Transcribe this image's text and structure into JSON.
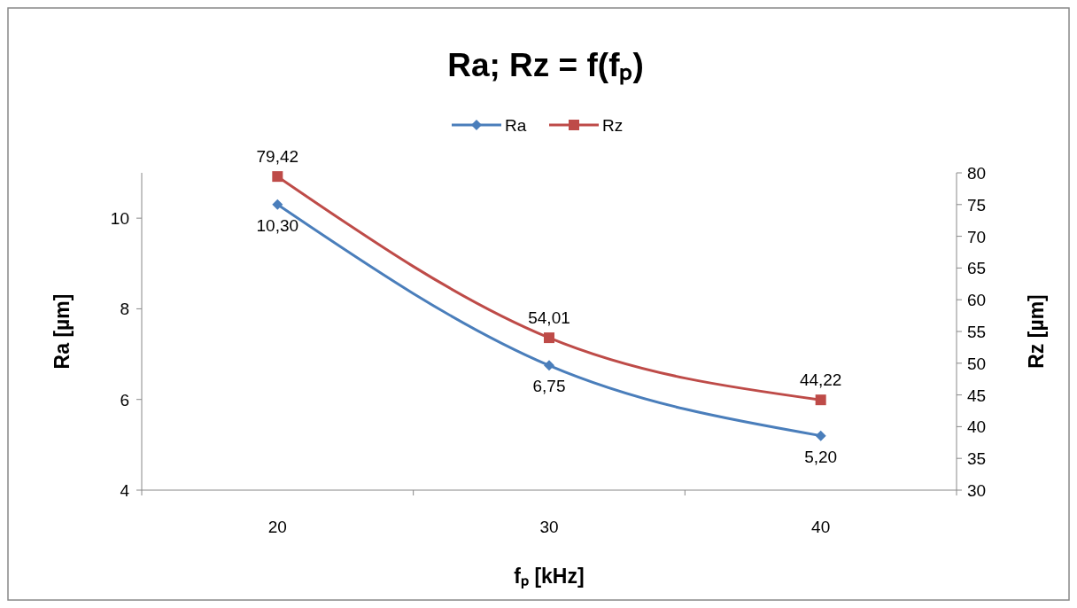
{
  "chart_data": {
    "type": "line",
    "title": "Ra; Rz = f(fₚ)",
    "xlabel": "fₚ [kHz]",
    "ylabel": "Ra [µm]",
    "y2label": "Rz [µm]",
    "categories": [
      "20",
      "30",
      "40"
    ],
    "series": [
      {
        "name": "Ra",
        "color": "#4a7ebb",
        "marker": "diamond",
        "values": [
          10.3,
          6.75,
          5.2
        ],
        "value_labels": [
          "10,30",
          "6,75",
          "5,20"
        ]
      },
      {
        "name": "Rz",
        "color": "#be4b48",
        "marker": "square",
        "axis": "y2",
        "values": [
          79.42,
          54.01,
          44.22
        ],
        "value_labels": [
          "79,42",
          "54,01",
          "44,22"
        ]
      }
    ],
    "ylim": [
      4,
      11
    ],
    "yticks": [
      4,
      6,
      8,
      10
    ],
    "y2lim": [
      30,
      80
    ],
    "y2ticks": [
      30,
      35,
      40,
      45,
      50,
      55,
      60,
      65,
      70,
      75,
      80
    ],
    "legend": "top",
    "grid": false
  }
}
